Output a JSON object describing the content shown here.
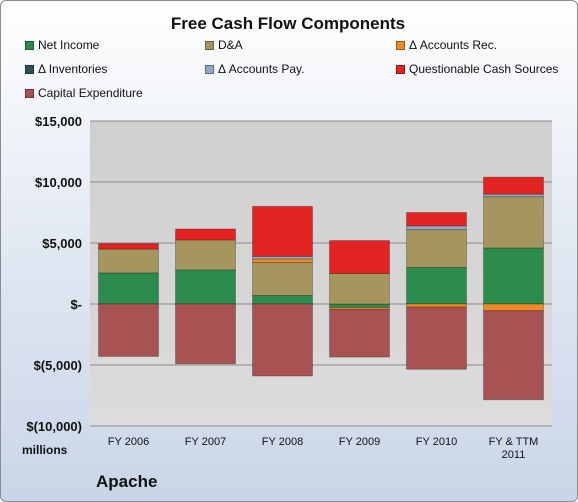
{
  "chart_data": {
    "type": "bar",
    "stacked": true,
    "title": "Free Cash Flow Components",
    "categories": [
      "FY 2006",
      "FY 2007",
      "FY 2008",
      "FY 2009",
      "FY 2010",
      "FY & TTM 2011"
    ],
    "series": [
      {
        "name": "Net Income",
        "color": "#2e8b4e",
        "values": [
          2550,
          2800,
          700,
          -300,
          3000,
          4600
        ]
      },
      {
        "name": "D&A",
        "color": "#a59660",
        "values": [
          1950,
          2450,
          2700,
          2500,
          3100,
          4200
        ]
      },
      {
        "name": "Δ Accounts Rec.",
        "color": "#f08a24",
        "values": [
          0,
          0,
          300,
          -150,
          -250,
          -550
        ]
      },
      {
        "name": "Δ Inventories",
        "color": "#2f4f5f",
        "values": [
          0,
          0,
          0,
          0,
          0,
          0
        ]
      },
      {
        "name": "Δ Accounts Pay.",
        "color": "#8fa8c8",
        "values": [
          0,
          0,
          200,
          0,
          300,
          200
        ]
      },
      {
        "name": "Questionable Cash Sources",
        "color": "#e32222",
        "values": [
          450,
          900,
          4100,
          2700,
          1100,
          1400
        ]
      },
      {
        "name": "Capital Expenditure",
        "color": "#a85353",
        "values": [
          -4300,
          -4900,
          -5900,
          -3900,
          -5100,
          -7300
        ]
      }
    ],
    "ylim": [
      -10000,
      15000
    ],
    "yticks": [
      -10000,
      -5000,
      0,
      5000,
      10000,
      15000
    ],
    "ytick_labels": [
      "$(10,000)",
      "$(5,000)",
      "$-",
      "$5,000",
      "$10,000",
      "$15,000"
    ],
    "ylabel": "millions",
    "grid": true,
    "legend_position": "top"
  },
  "page": {
    "units_label": "millions",
    "company": "Apache"
  }
}
